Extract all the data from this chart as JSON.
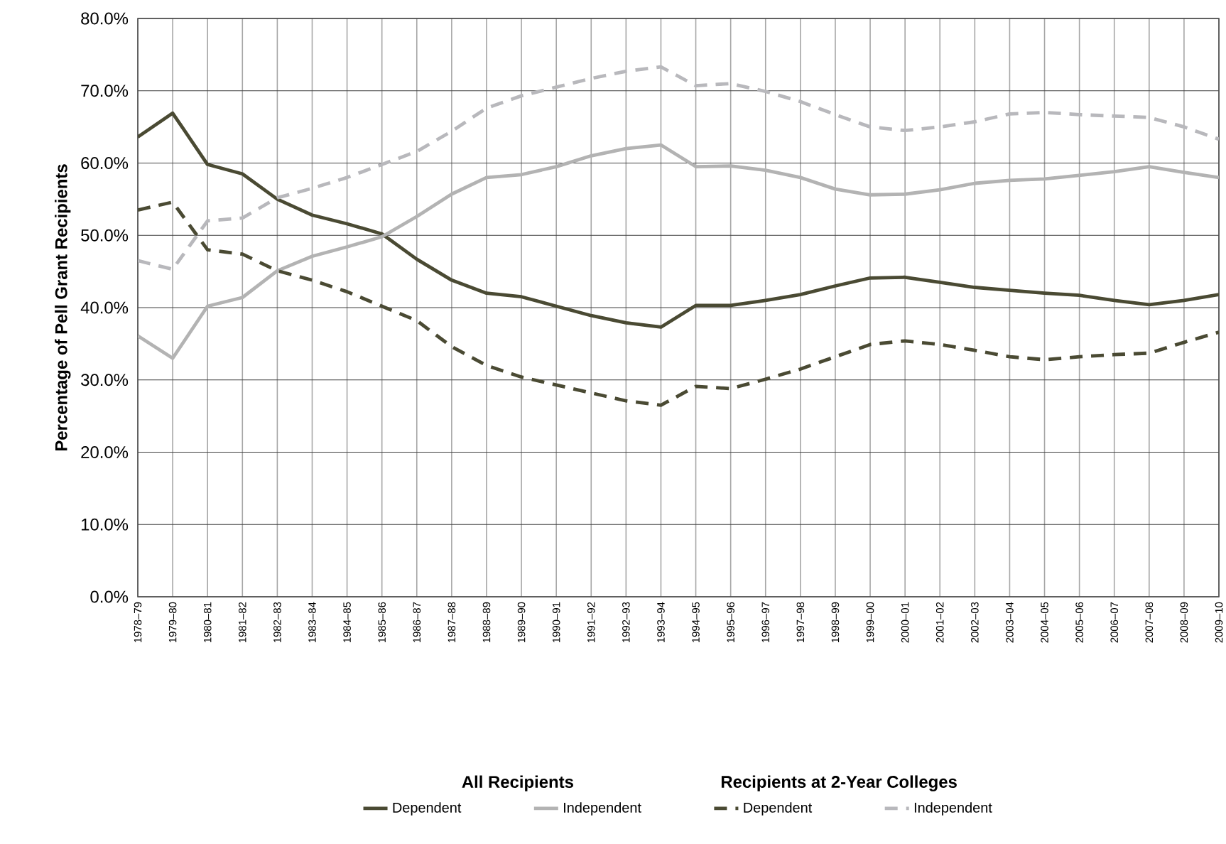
{
  "chart_data": {
    "type": "line",
    "ylabel": "Percentage of Pell Grant Recipients",
    "categories": [
      "1978–79",
      "1979–80",
      "1980–81",
      "1981–82",
      "1982–83",
      "1983–84",
      "1984–85",
      "1985–86",
      "1986–87",
      "1987–88",
      "1988–89",
      "1989–90",
      "1990–91",
      "1991–92",
      "1992–93",
      "1993–94",
      "1994–95",
      "1995–96",
      "1996–97",
      "1997–98",
      "1998–99",
      "1999–00",
      "2000–01",
      "2001–02",
      "2002–03",
      "2003–04",
      "2004–05",
      "2005–06",
      "2006–07",
      "2007–08",
      "2008–09",
      "2009–10"
    ],
    "series": [
      {
        "name": "Dependent",
        "color": "#4a4a33",
        "line_style": "solid",
        "values": [
          63.6,
          66.9,
          59.8,
          58.5,
          55.0,
          52.8,
          51.6,
          50.2,
          46.7,
          43.8,
          42.0,
          41.5,
          40.2,
          38.9,
          37.9,
          37.3,
          40.3,
          40.3,
          41.0,
          41.8,
          43.0,
          44.1,
          44.2,
          43.5,
          42.8,
          42.4,
          42.0,
          41.7,
          41.0,
          40.4,
          41.0,
          41.8
        ]
      },
      {
        "name": "Independent",
        "color": "#b3b3b3",
        "line_style": "solid",
        "values": [
          36.1,
          33.0,
          40.2,
          41.4,
          45.1,
          47.1,
          48.4,
          49.8,
          52.6,
          55.7,
          58.0,
          58.4,
          59.5,
          61.0,
          62.0,
          62.5,
          59.5,
          59.6,
          59.0,
          58.0,
          56.4,
          55.6,
          55.7,
          56.3,
          57.2,
          57.6,
          57.8,
          58.3,
          58.8,
          59.5,
          58.7,
          58.0
        ]
      },
      {
        "name": "Dependent",
        "color": "#4a4a33",
        "line_style": "dashed",
        "values": [
          53.5,
          54.6,
          48.0,
          47.4,
          45.1,
          43.8,
          42.2,
          40.2,
          38.2,
          34.6,
          32.0,
          30.4,
          29.3,
          28.2,
          27.1,
          26.5,
          29.1,
          28.8,
          30.1,
          31.5,
          33.2,
          34.9,
          35.4,
          34.9,
          34.1,
          33.2,
          32.8,
          33.2,
          33.5,
          33.7,
          35.2,
          36.6
        ]
      },
      {
        "name": "Independent",
        "color": "#b8b8bc",
        "line_style": "dashed",
        "values": [
          46.5,
          45.3,
          52.0,
          52.4,
          55.2,
          56.5,
          58.0,
          59.8,
          61.6,
          64.4,
          67.6,
          69.3,
          70.5,
          71.7,
          72.7,
          73.3,
          70.7,
          71.0,
          69.9,
          68.5,
          66.7,
          65.0,
          64.5,
          65.0,
          65.7,
          66.8,
          67.0,
          66.7,
          66.5,
          66.3,
          65.0,
          63.3
        ]
      }
    ],
    "ylim": [
      0,
      80
    ],
    "yticks": [
      {
        "value": 0,
        "label": "0.0%"
      },
      {
        "value": 10,
        "label": "10.0%"
      },
      {
        "value": 20,
        "label": "20.0%"
      },
      {
        "value": 30,
        "label": "30.0%"
      },
      {
        "value": 40,
        "label": "40.0%"
      },
      {
        "value": 50,
        "label": "50.0%"
      },
      {
        "value": 60,
        "label": "60.0%"
      },
      {
        "value": 70,
        "label": "70.0%"
      },
      {
        "value": 80,
        "label": "80.0%"
      }
    ],
    "grid": true,
    "legend": "bottom",
    "annotations": [
      "All Recipients",
      "Recipients at 2-Year Colleges"
    ]
  }
}
